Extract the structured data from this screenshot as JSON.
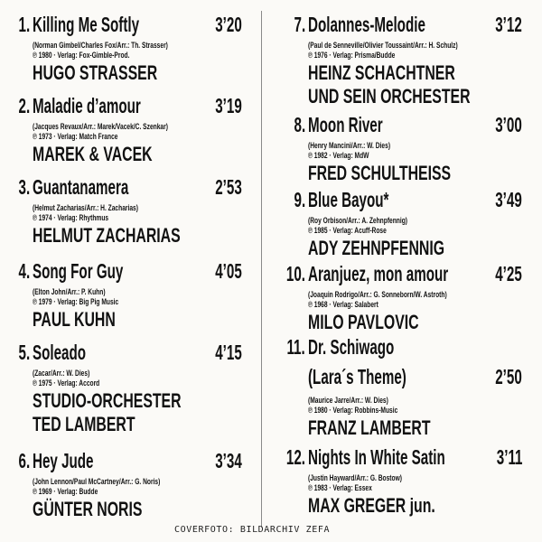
{
  "tracks": [
    {
      "number": "1.",
      "title": [
        "Killing Me Softly"
      ],
      "duration": "3’20",
      "credits": "(Norman Gimbel/Charles Fox/Arr.: Th. Strasser)",
      "publishing": "℗ 1980 · Verlag: Fox-Gimble-Prod.",
      "artist": [
        "HUGO STRASSER"
      ]
    },
    {
      "number": "2.",
      "title": [
        "Maladie d’amour"
      ],
      "duration": "3’19",
      "credits": "(Jacques Revaux/Arr.: Marek/Vacek/C. Szenkar)",
      "publishing": "℗ 1973 · Verlag: Match France",
      "artist": [
        "MAREK & VACEK"
      ]
    },
    {
      "number": "3.",
      "title": [
        "Guantanamera"
      ],
      "duration": "2’53",
      "credits": "(Helmut Zacharias/Arr.: H. Zacharias)",
      "publishing": "℗ 1974 · Verlag: Rhythmus",
      "artist": [
        "HELMUT ZACHARIAS"
      ]
    },
    {
      "number": "4.",
      "title": [
        "Song For Guy"
      ],
      "duration": "4’05",
      "credits": "(Elton John/Arr.: P. Kuhn)",
      "publishing": "℗ 1979 · Verlag: Big Pig Music",
      "artist": [
        "PAUL KUHN"
      ]
    },
    {
      "number": "5.",
      "title": [
        "Soleado"
      ],
      "duration": "4’15",
      "credits": "(Zacar/Arr.: W. Dies)",
      "publishing": "℗ 1975 · Verlag: Accord",
      "artist": [
        "STUDIO-ORCHESTER",
        "TED LAMBERT"
      ]
    },
    {
      "number": "6.",
      "title": [
        "Hey Jude"
      ],
      "duration": "3’34",
      "credits": "(John Lennon/Paul McCartney/Arr.: G. Noris)",
      "publishing": "℗ 1969 · Verlag: Budde",
      "artist": [
        "GÜNTER NORIS"
      ]
    },
    {
      "number": "7.",
      "title": [
        "Dolannes-Melodie"
      ],
      "duration": "3’12",
      "credits": "(Paul de Senneville/Olivier Toussaint/Arr.: H. Schulz)",
      "publishing": "℗ 1976 · Verlag: Prisma/Budde",
      "artist": [
        "HEINZ SCHACHTNER",
        "UND SEIN ORCHESTER"
      ]
    },
    {
      "number": "8.",
      "title": [
        "Moon River"
      ],
      "duration": "3’00",
      "credits": "(Henry Mancini/Arr.: W. Dies)",
      "publishing": "℗ 1982 · Verlag: MdW",
      "artist": [
        "FRED SCHULTHEISS"
      ]
    },
    {
      "number": "9.",
      "title": [
        "Blue Bayou*"
      ],
      "duration": "3’49",
      "credits": "(Roy Orbison/Arr.: A. Zehnpfennig)",
      "publishing": "℗ 1985 · Verlag: Acuff-Rose",
      "artist": [
        "ADY ZEHNPFENNIG"
      ]
    },
    {
      "number": "10.",
      "title": [
        "Aranjuez, mon amour"
      ],
      "duration": "4’25",
      "credits": "(Joaquin Rodrigo/Arr.: G. Sonneborn/W. Astroth)",
      "publishing": "℗ 1968 · Verlag: Salabert",
      "artist": [
        "MILO PAVLOVIC"
      ]
    },
    {
      "number": "11.",
      "title": [
        "Dr. Schiwago",
        "(Lara´s Theme)"
      ],
      "duration": "2’50",
      "credits": "(Maurice Jarre/Arr.: W. Dies)",
      "publishing": "℗ 1980 · Verlag: Robbins-Music",
      "artist": [
        "FRANZ LAMBERT"
      ]
    },
    {
      "number": "12.",
      "title": [
        "Nights In White Satin"
      ],
      "duration": "3’11",
      "credits": "(Justin Hayward/Arr.: G. Bostow)",
      "publishing": "℗ 1983 · Verlag: Essex",
      "artist": [
        "MAX GREGER jun."
      ]
    }
  ],
  "footer": "COVERFOTO: BILDARCHIV ZEFA",
  "colors": {
    "background": "#fbfaf7",
    "text": "#111111",
    "divider": "#8a8a8a"
  }
}
